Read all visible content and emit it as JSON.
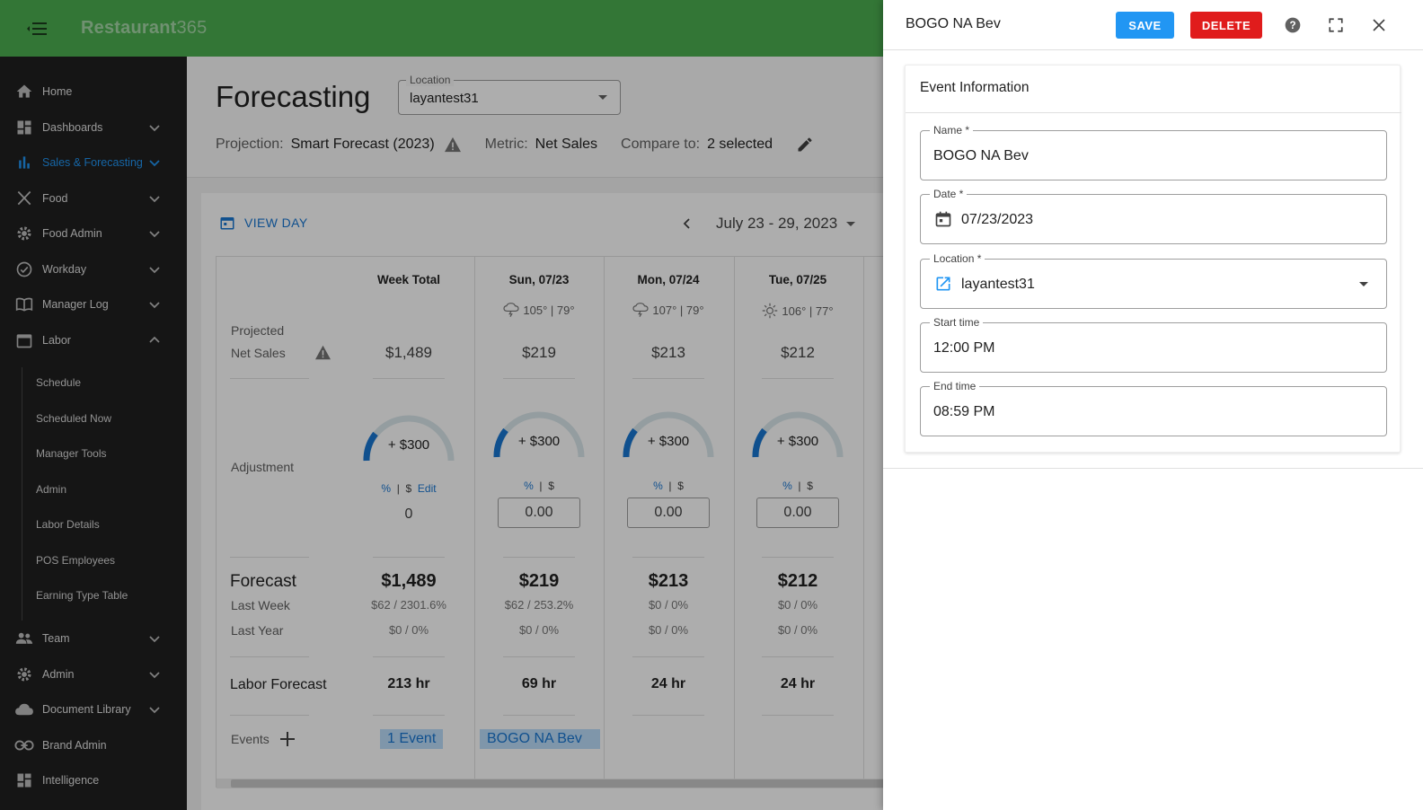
{
  "app": {
    "brand_bold": "Restaurant",
    "brand_light": "365"
  },
  "sidebar": {
    "items": [
      {
        "label": "Home",
        "icon": "home-icon"
      },
      {
        "label": "Dashboards",
        "icon": "dashboard-icon"
      },
      {
        "label": "Sales & Forecasting",
        "icon": "bar-chart-icon"
      },
      {
        "label": "Food",
        "icon": "utensils-icon"
      },
      {
        "label": "Food Admin",
        "icon": "gear-icon"
      },
      {
        "label": "Workday",
        "icon": "check-circle-icon"
      },
      {
        "label": "Manager Log",
        "icon": "book-icon"
      },
      {
        "label": "Labor",
        "icon": "calendar-icon"
      },
      {
        "label": "Team",
        "icon": "people-icon"
      },
      {
        "label": "Admin",
        "icon": "gear-icon"
      },
      {
        "label": "Document Library",
        "icon": "cloud-icon"
      },
      {
        "label": "Brand Admin",
        "icon": "link-icon"
      },
      {
        "label": "Intelligence",
        "icon": "dashboard-icon"
      }
    ],
    "labor_sub": [
      "Schedule",
      "Scheduled Now",
      "Manager Tools",
      "Admin",
      "Labor Details",
      "POS Employees",
      "Earning Type Table"
    ]
  },
  "page": {
    "title": "Forecasting",
    "location_label": "Location",
    "location_value": "layantest31",
    "projection_label": "Projection:",
    "projection_value": "Smart Forecast (2023)",
    "metric_label": "Metric:",
    "metric_value": "Net Sales",
    "compare_label": "Compare to:",
    "compare_value": "2 selected",
    "view_day": "VIEW DAY",
    "week_range": "July 23 - 29, 2023"
  },
  "table": {
    "row_labels": {
      "projected_1": "Projected",
      "projected_2": "Net Sales",
      "adjustment": "Adjustment",
      "forecast": "Forecast",
      "last_week": "Last Week",
      "last_year": "Last Year",
      "labor_forecast": "Labor Forecast",
      "events": "Events"
    },
    "columns": [
      {
        "head": "Week Total",
        "weather": "",
        "projected": "$1,489",
        "adj": "+ $300",
        "adj_value": "0",
        "forecast": "$1,489",
        "last_week": "$62 / 2301.6%",
        "last_year": "$0 / 0%",
        "labor": "213 hr",
        "event": "1 Event"
      },
      {
        "head": "Sun, 07/23",
        "weather": "105° | 79°",
        "projected": "$219",
        "adj": "+ $300",
        "adj_value": "0.00",
        "forecast": "$219",
        "last_week": "$62 / 253.2%",
        "last_year": "$0 / 0%",
        "labor": "69 hr",
        "event": "BOGO NA Bev"
      },
      {
        "head": "Mon, 07/24",
        "weather": "107° | 79°",
        "projected": "$213",
        "adj": "+ $300",
        "adj_value": "0.00",
        "forecast": "$213",
        "last_week": "$0 / 0%",
        "last_year": "$0 / 0%",
        "labor": "24 hr",
        "event": ""
      },
      {
        "head": "Tue, 07/25",
        "weather": "106° | 77°",
        "projected": "$212",
        "adj": "+ $300",
        "adj_value": "0.00",
        "forecast": "$212",
        "last_week": "$0 / 0%",
        "last_year": "$0 / 0%",
        "labor": "24 hr",
        "event": ""
      }
    ],
    "pct": "%",
    "sep": "|",
    "dollar": "$",
    "edit": "Edit"
  },
  "panel": {
    "title": "BOGO NA Bev",
    "save": "SAVE",
    "delete": "DELETE",
    "section_title": "Event Information",
    "fields": {
      "name_label": "Name *",
      "name_value": "BOGO NA Bev",
      "date_label": "Date *",
      "date_value": "07/23/2023",
      "location_label": "Location *",
      "location_value": "layantest31",
      "start_label": "Start time",
      "start_value": "12:00 PM",
      "end_label": "End time",
      "end_value": "08:59 PM"
    }
  },
  "colors": {
    "topbar": "#4caf50",
    "accent": "#2196f3",
    "danger": "#e01c1c",
    "sidebar": "#1f1f1f"
  }
}
